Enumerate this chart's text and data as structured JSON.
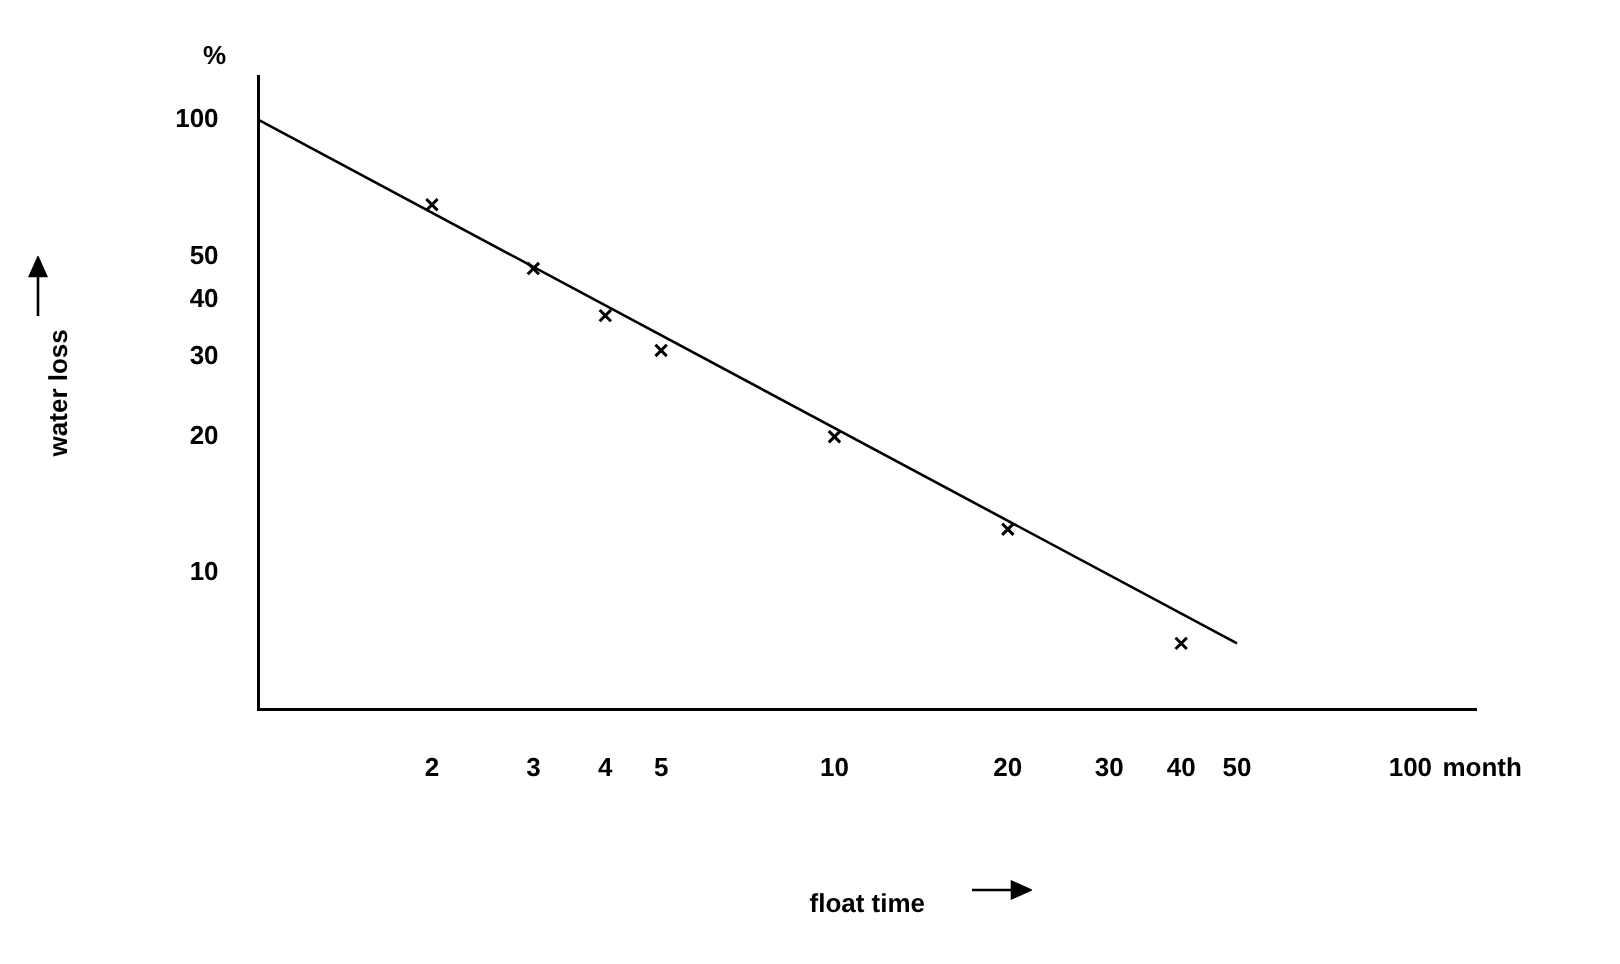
{
  "chart_data": {
    "type": "scatter",
    "xlabel": "float time",
    "ylabel": "water loss",
    "annotations": [
      "%",
      "month"
    ],
    "series": [
      {
        "color": "#000000",
        "marker": "cross",
        "x": [
          2,
          3,
          4,
          5,
          10,
          20,
          40
        ],
        "values": [
          65,
          47,
          37,
          31,
          20,
          12.5,
          7
        ]
      },
      {
        "type": "line",
        "color": "#000000",
        "marker": "none",
        "x": [
          1,
          50
        ],
        "values": [
          100,
          7
        ]
      }
    ],
    "log": "xy",
    "xlim": [
      1,
      130
    ],
    "ylim": [
      5,
      125
    ],
    "xticks": [
      2,
      3,
      4,
      5,
      10,
      20,
      30,
      40,
      50,
      100
    ],
    "yticks": [
      10,
      20,
      30,
      40,
      50,
      100
    ],
    "grid": false,
    "legend": false
  }
}
